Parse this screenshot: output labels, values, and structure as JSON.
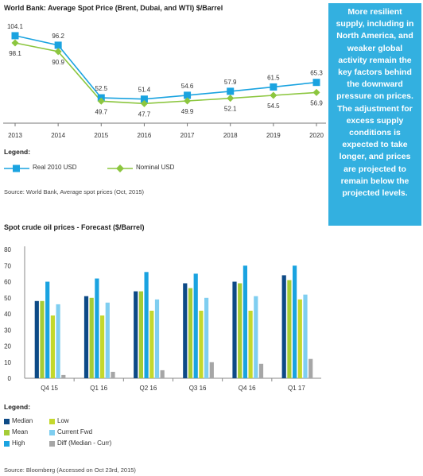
{
  "callout": {
    "text": "More resilient supply, including in North America, and weaker global activity remain the key factors behind the downward pressure on prices. The adjustment for excess supply conditions is expected to take longer, and prices are projected to remain below the projected levels."
  },
  "chart1": {
    "title": "World Bank: Average Spot Price (Brent, Dubai, and WTI) $/Barrel",
    "legend_title": "Legend:",
    "source": "Source: World Bank, Average spot prices (Oct, 2015)"
  },
  "chart2": {
    "title": "Spot crude oil prices - Forecast ($/Barrel)",
    "legend_title": "Legend:",
    "source": "Source: Bloomberg (Accessed on Oct 23rd, 2015)"
  },
  "chart_data": [
    {
      "type": "line",
      "title": "World Bank: Average Spot Price (Brent, Dubai, and WTI) $/Barrel",
      "categories": [
        "2013",
        "2014",
        "2015",
        "2016",
        "2017",
        "2018",
        "2019",
        "2020"
      ],
      "series": [
        {
          "name": "Real 2010 USD",
          "values": [
            104.1,
            96.2,
            52.5,
            51.4,
            54.6,
            57.9,
            61.5,
            65.3
          ],
          "color": "#1aa3e0",
          "marker": "square"
        },
        {
          "name": "Nominal USD",
          "values": [
            98.1,
            90.9,
            49.7,
            47.7,
            49.9,
            52.1,
            54.5,
            56.9
          ],
          "color": "#8cc63f",
          "marker": "diamond"
        }
      ],
      "ylim": [
        40,
        110
      ],
      "grid": false,
      "legend": "bottom"
    },
    {
      "type": "bar",
      "title": "Spot crude oil prices - Forecast ($/Barrel)",
      "categories": [
        "Q4 15",
        "Q1 16",
        "Q2 16",
        "Q3 16",
        "Q4 16",
        "Q1 17"
      ],
      "series": [
        {
          "name": "Median",
          "values": [
            48,
            51,
            54,
            59,
            60,
            64
          ],
          "color": "#0d4a86"
        },
        {
          "name": "Mean",
          "values": [
            48,
            50,
            54,
            56,
            59,
            61
          ],
          "color": "#a5cc35"
        },
        {
          "name": "High",
          "values": [
            60,
            62,
            66,
            65,
            70,
            70
          ],
          "color": "#1aa3e0"
        },
        {
          "name": "Low",
          "values": [
            39,
            39,
            42,
            42,
            42,
            49
          ],
          "color": "#c4d82d"
        },
        {
          "name": "Current Fwd",
          "values": [
            46,
            47,
            49,
            50,
            51,
            52
          ],
          "color": "#7fcef0"
        },
        {
          "name": "Diff (Median - Curr)",
          "values": [
            2,
            4,
            5,
            10,
            9,
            12
          ],
          "color": "#a6a6a6"
        }
      ],
      "yticks": [
        0,
        10,
        20,
        30,
        40,
        50,
        60,
        70,
        80
      ],
      "ylim": [
        0,
        80
      ],
      "grid": false,
      "legend": "bottom"
    }
  ]
}
